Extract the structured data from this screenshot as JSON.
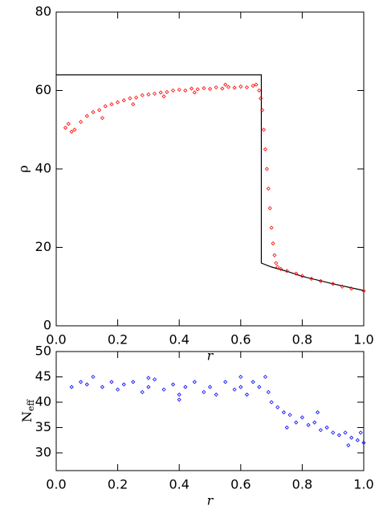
{
  "chart_data": [
    {
      "type": "scatter",
      "xlabel": "r",
      "ylabel": "ρ",
      "xlim": [
        0,
        1
      ],
      "ylim": [
        0,
        80
      ],
      "xticks": [
        {
          "value": 0,
          "label": "0.0"
        },
        0.2,
        0.4,
        0.6,
        0.8,
        {
          "value": 1,
          "label": "1.0"
        }
      ],
      "yticks": [
        0,
        20,
        40,
        60,
        80
      ],
      "series": [
        {
          "type": "line",
          "color": "#000000",
          "x": [
            0,
            0.667,
            0.667,
            0.7,
            0.75,
            0.8,
            0.9,
            1.0
          ],
          "values": [
            64,
            64,
            16,
            15,
            13.9,
            12.6,
            10.7,
            9.0
          ]
        },
        {
          "type": "scatter",
          "color": "#ff0000",
          "x": [
            0.03,
            0.04,
            0.06,
            0.08,
            0.1,
            0.12,
            0.14,
            0.16,
            0.18,
            0.2,
            0.22,
            0.24,
            0.26,
            0.28,
            0.3,
            0.32,
            0.34,
            0.36,
            0.38,
            0.4,
            0.42,
            0.44,
            0.46,
            0.48,
            0.5,
            0.52,
            0.54,
            0.56,
            0.58,
            0.6,
            0.62,
            0.64,
            0.65,
            0.66,
            0.665,
            0.67,
            0.675,
            0.68,
            0.685,
            0.69,
            0.695,
            0.7,
            0.705,
            0.71,
            0.715,
            0.72,
            0.73,
            0.75,
            0.78,
            0.8,
            0.83,
            0.86,
            0.9,
            0.93,
            0.96,
            1.0,
            0.25,
            0.35,
            0.45,
            0.55,
            0.15,
            0.05
          ],
          "values": [
            50.5,
            51.5,
            50,
            52,
            53.5,
            54.5,
            55,
            56,
            56.5,
            57,
            57.5,
            58,
            58.2,
            58.8,
            59,
            59.2,
            59.5,
            59.6,
            60,
            60.2,
            60,
            60.5,
            60.3,
            60.6,
            60.4,
            60.8,
            60.5,
            60.9,
            60.7,
            61,
            60.8,
            61.2,
            61.5,
            60,
            58,
            55,
            50,
            45,
            40,
            35,
            30,
            25,
            21,
            18,
            16,
            15,
            14.5,
            14,
            13.3,
            12.7,
            12,
            11.4,
            10.7,
            10,
            9.5,
            8.9,
            56.5,
            58.5,
            59.5,
            61.5,
            53,
            49.5
          ]
        }
      ]
    },
    {
      "type": "scatter",
      "xlabel": "r",
      "ylabel": {
        "text": "N",
        "subscript": "eff"
      },
      "xlim": [
        0,
        1
      ],
      "ylim": [
        26.5,
        50
      ],
      "xticks": [
        {
          "value": 0,
          "label": "0.0"
        },
        0.2,
        0.4,
        0.6,
        0.8,
        {
          "value": 1,
          "label": "1.0"
        }
      ],
      "yticks": [
        30,
        35,
        40,
        45,
        50
      ],
      "series": [
        {
          "type": "scatter",
          "color": "#0000ff",
          "x": [
            0.05,
            0.08,
            0.1,
            0.12,
            0.15,
            0.18,
            0.2,
            0.22,
            0.25,
            0.28,
            0.3,
            0.32,
            0.35,
            0.38,
            0.4,
            0.42,
            0.45,
            0.48,
            0.5,
            0.52,
            0.55,
            0.58,
            0.6,
            0.62,
            0.64,
            0.66,
            0.68,
            0.69,
            0.7,
            0.72,
            0.74,
            0.76,
            0.78,
            0.8,
            0.82,
            0.84,
            0.86,
            0.88,
            0.9,
            0.92,
            0.94,
            0.96,
            0.98,
            1.0,
            0.85,
            0.95,
            0.75,
            0.99,
            0.4,
            0.6,
            0.3
          ],
          "values": [
            43,
            44,
            43.5,
            45,
            43,
            44,
            42.5,
            43.5,
            44,
            42,
            43,
            44.5,
            42.5,
            43.5,
            41.5,
            43,
            44,
            42,
            43,
            41.5,
            44,
            42.5,
            43,
            41.5,
            44,
            43,
            45,
            42,
            40,
            39,
            38,
            37.5,
            36,
            37,
            35.5,
            36,
            34.5,
            35,
            34,
            33.5,
            34,
            33,
            32.5,
            32,
            38,
            31.5,
            35,
            34,
            40.5,
            45,
            44.8
          ]
        }
      ]
    }
  ]
}
